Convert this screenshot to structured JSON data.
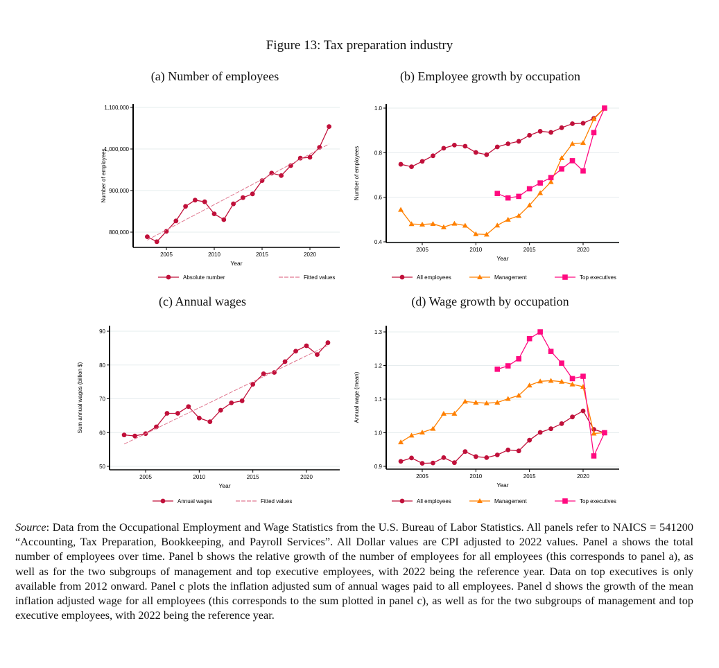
{
  "figure_title": "Figure 13: Tax preparation industry",
  "caption": {
    "source_label": "Source",
    "text": ": Data from the Occupational Employment and Wage Statistics from the U.S. Bureau of Labor Statistics. All panels refer to NAICS = 541200 “Accounting, Tax Preparation, Bookkeeping, and Payroll Services”. All Dollar values are CPI adjusted to 2022 values. Panel a shows the total number of employees over time. Panel b shows the relative growth of the number of employees for all employees (this corresponds to panel a), as well as for the two subgroups of management and top executive employees, with 2022 being the reference year. Data on top executives is only available from 2012 onward. Panel c plots the inflation adjusted sum of annual wages paid to all employees. Panel d shows the growth of the mean inflation adjusted wage for all employees (this corresponds to the sum plotted in panel c), as well as for the two subgroups of management and top executive employees, with 2022 being the reference year."
  },
  "colors": {
    "all": "#c0103a",
    "management": "#ff8000",
    "top": "#ff0a80",
    "fitted": "#e07890",
    "grid": "#e6ecee"
  },
  "chart_data": [
    {
      "type": "line",
      "title": "(a) Number of employees",
      "xlabel": "Year",
      "ylabel": "Number of employees",
      "xticks": [
        2005,
        2010,
        2015,
        2020
      ],
      "yticks": [
        800000,
        900000,
        1000000,
        1100000
      ],
      "ytick_labels": [
        "800,000",
        "900,000",
        "1,000,000",
        "1,100,000"
      ],
      "grid": true,
      "legend": "bottom",
      "x": [
        2003,
        2004,
        2005,
        2006,
        2007,
        2008,
        2009,
        2010,
        2011,
        2012,
        2013,
        2014,
        2015,
        2016,
        2017,
        2018,
        2019,
        2020,
        2021,
        2022
      ],
      "series": [
        {
          "name": "Absolute number",
          "color_key": "all",
          "marker": "circle",
          "values": [
            789000,
            777000,
            802000,
            827000,
            862000,
            877000,
            873000,
            844000,
            830000,
            868000,
            883000,
            892000,
            924000,
            942000,
            936000,
            960000,
            978000,
            980000,
            1004000,
            1054000
          ]
        },
        {
          "name": "Fitted values",
          "color_key": "fitted",
          "style": "dashed",
          "x": [
            2003,
            2022
          ],
          "values": [
            781000,
            1012000
          ]
        }
      ]
    },
    {
      "type": "line",
      "title": "(b) Employee growth by occupation",
      "xlabel": "Year",
      "ylabel": "Number of employees",
      "xticks": [
        2005,
        2010,
        2015,
        2020
      ],
      "yticks": [
        0.4,
        0.6,
        0.8,
        1.0
      ],
      "ytick_labels": [
        "0.4",
        "0.6",
        "0.8",
        "1.0"
      ],
      "grid": true,
      "legend": "bottom",
      "x": [
        2003,
        2004,
        2005,
        2006,
        2007,
        2008,
        2009,
        2010,
        2011,
        2012,
        2013,
        2014,
        2015,
        2016,
        2017,
        2018,
        2019,
        2020,
        2021,
        2022
      ],
      "series": [
        {
          "name": "All employees",
          "color_key": "all",
          "marker": "circle",
          "values": [
            0.748,
            0.737,
            0.761,
            0.786,
            0.82,
            0.834,
            0.829,
            0.801,
            0.791,
            0.826,
            0.84,
            0.851,
            0.878,
            0.896,
            0.891,
            0.912,
            0.93,
            0.932,
            0.954,
            1.0
          ]
        },
        {
          "name": "Management",
          "color_key": "management",
          "marker": "triangle",
          "values": [
            0.544,
            0.48,
            0.478,
            0.481,
            0.466,
            0.482,
            0.473,
            0.435,
            0.433,
            0.474,
            0.5,
            0.517,
            0.564,
            0.619,
            0.669,
            0.776,
            0.84,
            0.844,
            0.951,
            1.0
          ]
        },
        {
          "name": "Top executives",
          "color_key": "top",
          "marker": "square",
          "values": [
            null,
            null,
            null,
            null,
            null,
            null,
            null,
            null,
            null,
            0.617,
            0.597,
            0.604,
            0.638,
            0.664,
            0.688,
            0.727,
            0.764,
            0.718,
            0.89,
            1.0
          ]
        }
      ]
    },
    {
      "type": "line",
      "title": "(c) Annual wages",
      "xlabel": "Year",
      "ylabel": "Sum annual wages (billion $)",
      "xticks": [
        2005,
        2010,
        2015,
        2020
      ],
      "yticks": [
        50,
        60,
        70,
        80,
        90
      ],
      "ytick_labels": [
        "50",
        "60",
        "70",
        "80",
        "90"
      ],
      "grid": true,
      "legend": "bottom",
      "x": [
        2003,
        2004,
        2005,
        2006,
        2007,
        2008,
        2009,
        2010,
        2011,
        2012,
        2013,
        2014,
        2015,
        2016,
        2017,
        2018,
        2019,
        2020,
        2021,
        2022
      ],
      "series": [
        {
          "name": "Annual wages",
          "color_key": "all",
          "marker": "circle",
          "values": [
            59.3,
            59.0,
            59.7,
            61.7,
            65.7,
            65.7,
            67.7,
            64.3,
            63.2,
            66.6,
            68.8,
            69.4,
            74.3,
            77.4,
            77.8,
            81.0,
            84.1,
            85.7,
            83.1,
            86.6
          ]
        },
        {
          "name": "Fitted values",
          "color_key": "fitted",
          "style": "dashed",
          "x": [
            2003,
            2022
          ],
          "values": [
            56.6,
            85.8
          ]
        }
      ]
    },
    {
      "type": "line",
      "title": "(d) Wage growth by occupation",
      "xlabel": "Year",
      "ylabel": "Annual wage (mean)",
      "xticks": [
        2005,
        2010,
        2015,
        2020
      ],
      "yticks": [
        0.9,
        1.0,
        1.1,
        1.2,
        1.3
      ],
      "ytick_labels": [
        "0.9",
        "1.0",
        "1.1",
        "1.2",
        "1.3"
      ],
      "grid": true,
      "legend": "bottom",
      "x": [
        2003,
        2004,
        2005,
        2006,
        2007,
        2008,
        2009,
        2010,
        2011,
        2012,
        2013,
        2014,
        2015,
        2016,
        2017,
        2018,
        2019,
        2020,
        2021,
        2022
      ],
      "series": [
        {
          "name": "All employees",
          "color_key": "all",
          "marker": "circle",
          "values": [
            0.915,
            0.925,
            0.909,
            0.91,
            0.926,
            0.911,
            0.944,
            0.929,
            0.926,
            0.934,
            0.949,
            0.946,
            0.978,
            1.001,
            1.012,
            1.027,
            1.047,
            1.065,
            1.01,
            1.0
          ]
        },
        {
          "name": "Management",
          "color_key": "management",
          "marker": "triangle",
          "values": [
            0.972,
            0.992,
            1.001,
            1.012,
            1.057,
            1.057,
            1.093,
            1.09,
            1.088,
            1.09,
            1.101,
            1.111,
            1.141,
            1.153,
            1.155,
            1.152,
            1.144,
            1.137,
            0.998,
            1.0
          ]
        },
        {
          "name": "Top executives",
          "color_key": "top",
          "marker": "square",
          "values": [
            null,
            null,
            null,
            null,
            null,
            null,
            null,
            null,
            null,
            1.189,
            1.199,
            1.22,
            1.28,
            1.3,
            1.242,
            1.207,
            1.161,
            1.168,
            0.931,
            1.0
          ]
        }
      ]
    }
  ]
}
